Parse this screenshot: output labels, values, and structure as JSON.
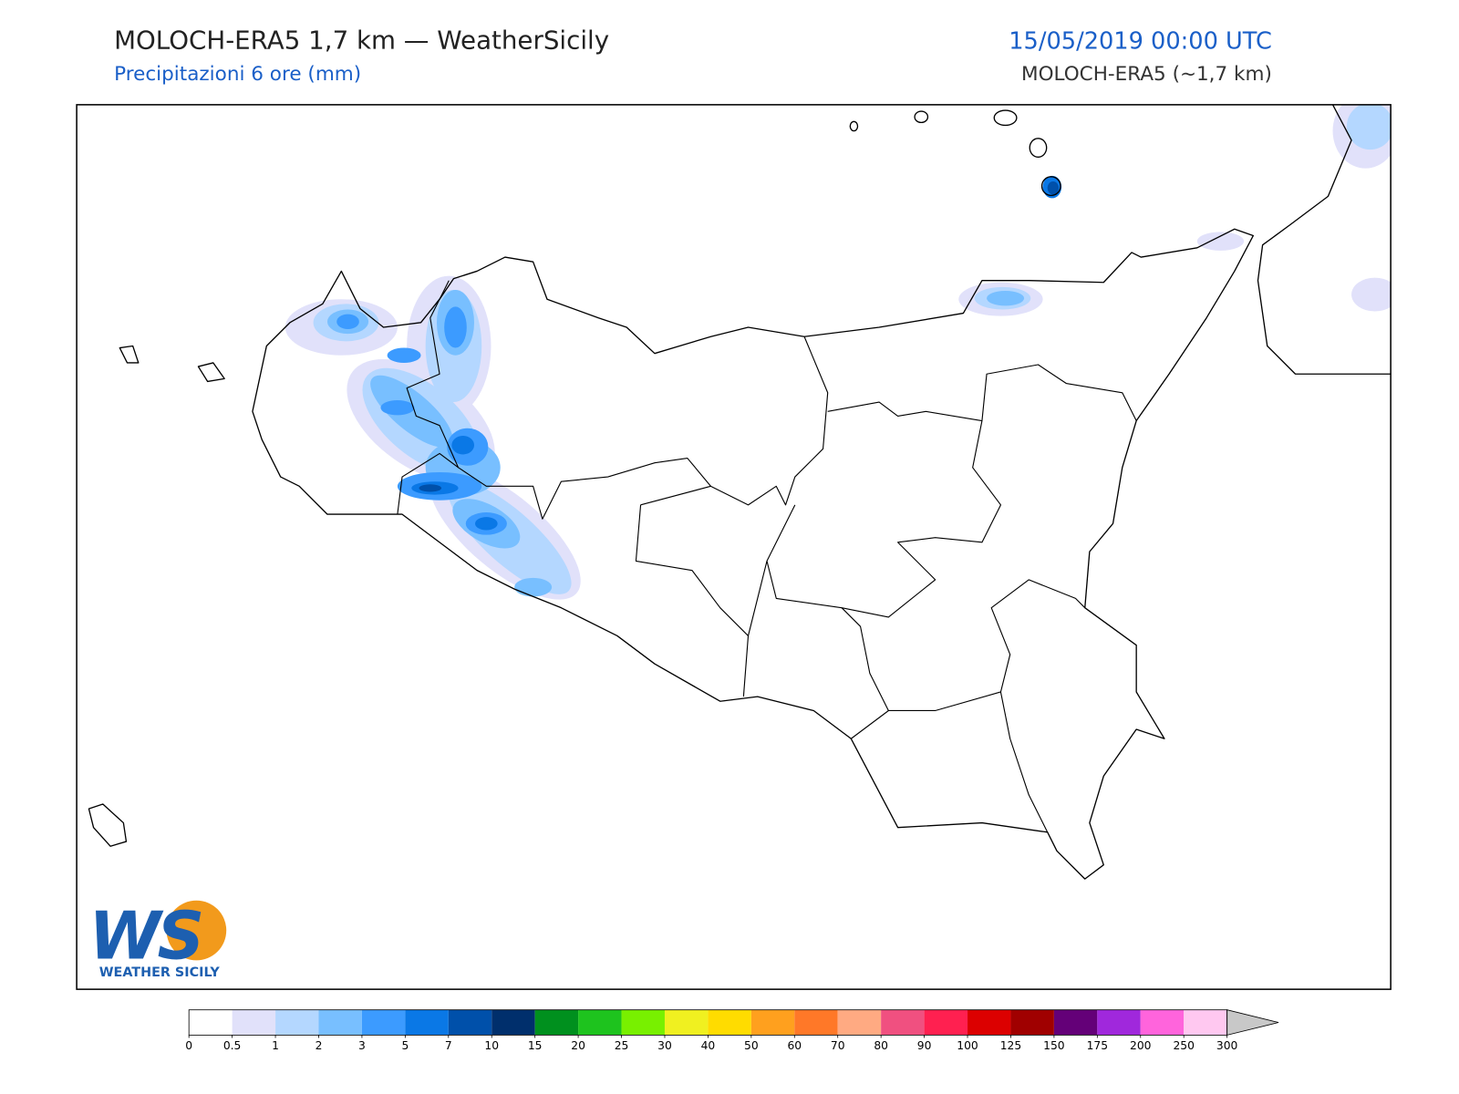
{
  "header": {
    "title": "MOLOCH-ERA5 1,7 km — WeatherSicily",
    "subtitle": "Precipitazioni 6 ore (mm)",
    "date": "15/05/2019 00:00 UTC",
    "model": "MOLOCH-ERA5 (~1,7 km)"
  },
  "colorbar": {
    "ticks": [
      0,
      0.5,
      1,
      2,
      3,
      5,
      7,
      10,
      15,
      20,
      25,
      30,
      40,
      50,
      60,
      70,
      80,
      90,
      100,
      125,
      150,
      175,
      200,
      250,
      300
    ],
    "colors": [
      "#ffffff",
      "#e1e1fa",
      "#b4d7ff",
      "#78bfff",
      "#3c9bff",
      "#0a78e6",
      "#0050aa",
      "#002f6c",
      "#00901e",
      "#1ec31e",
      "#78f000",
      "#f0f020",
      "#ffdc00",
      "#ffa01e",
      "#ff7828",
      "#ffaa82",
      "#f05080",
      "#ff2050",
      "#dc0000",
      "#a00000",
      "#640078",
      "#a028dc",
      "#ff64dc",
      "#ffc8f0"
    ],
    "extend_color": "#c8c8c8"
  },
  "logo": {
    "mark": "WS",
    "name": "WEATHER SICILY"
  }
}
